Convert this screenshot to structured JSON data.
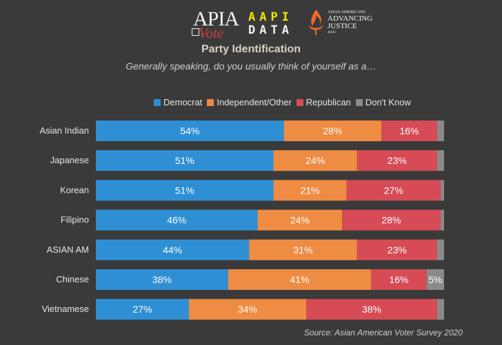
{
  "logos": {
    "apia": "APIA",
    "vote": "Vote",
    "aapi_line1": "AAPI",
    "aapi_line2": "DATA",
    "aaj_line1": "ASIAN AMERICANS",
    "aaj_line2": "ADVANCING",
    "aaj_line3": "JUSTICE",
    "aaj_line4": "AAJC"
  },
  "source": "Source: Asian American Voter Survey 2020",
  "colors": {
    "Democrat": "#2f8fd4",
    "Independent/Other": "#ef8c43",
    "Republican": "#d64b55",
    "Don't Know": "#8a8a8a"
  },
  "chart_data": {
    "type": "bar",
    "orientation": "horizontal",
    "stacked": true,
    "title": "Party Identification",
    "subtitle": "Generally speaking, do you usually think of yourself as a…",
    "legend_position": "top",
    "xlim": [
      0,
      100
    ],
    "unit": "%",
    "categories": [
      "Asian Indian",
      "Japanese",
      "Korean",
      "Filipino",
      "ASIAN AM",
      "Chinese",
      "Vietnamese"
    ],
    "series": [
      {
        "name": "Democrat",
        "values": [
          54,
          51,
          51,
          46,
          44,
          38,
          27
        ],
        "labels": [
          "54%",
          "51%",
          "51%",
          "46%",
          "44%",
          "38%",
          "27%"
        ]
      },
      {
        "name": "Independent/Other",
        "values": [
          28,
          24,
          21,
          24,
          31,
          41,
          34
        ],
        "labels": [
          "28%",
          "24%",
          "21%",
          "24%",
          "31%",
          "41%",
          "34%"
        ]
      },
      {
        "name": "Republican",
        "values": [
          16,
          23,
          27,
          28,
          23,
          16,
          38
        ],
        "labels": [
          "16%",
          "23%",
          "27%",
          "28%",
          "23%",
          "16%",
          "38%"
        ]
      },
      {
        "name": "Don't Know",
        "values": [
          2,
          2,
          1,
          1,
          2,
          5,
          2
        ],
        "labels": [
          "",
          "",
          "",
          "",
          "",
          "5%",
          ""
        ]
      }
    ]
  }
}
